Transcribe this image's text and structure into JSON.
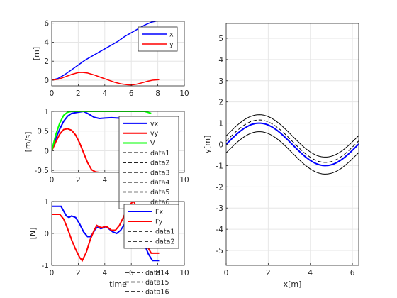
{
  "chart_data": [
    {
      "type": "line",
      "xlabel": "",
      "ylabel": "[m]",
      "xlim": [
        0,
        10
      ],
      "ylim": [
        -0.6,
        6.2
      ],
      "xticks": [
        "0",
        "2",
        "4",
        "6",
        "8",
        "10"
      ],
      "yticks": [
        "0",
        "2",
        "4",
        "6"
      ],
      "grid": true,
      "legend": "top-right",
      "series": [
        {
          "name": "x",
          "color": "#0000ff",
          "x": [
            0,
            0.5,
            1,
            1.5,
            2,
            2.5,
            3,
            3.5,
            4,
            4.5,
            5,
            5.5,
            6,
            6.5,
            7,
            7.5,
            8,
            8.1
          ],
          "y": [
            0,
            0.2,
            0.6,
            1.1,
            1.6,
            2.1,
            2.5,
            2.9,
            3.3,
            3.7,
            4.1,
            4.6,
            5.0,
            5.4,
            5.8,
            6.1,
            6.25,
            6.28
          ]
        },
        {
          "name": "y",
          "color": "#ff0000",
          "x": [
            0,
            0.5,
            1,
            1.5,
            2,
            2.3,
            2.7,
            3.2,
            3.7,
            4.2,
            4.7,
            5.2,
            5.7,
            6.0,
            6.4,
            6.8,
            7.2,
            7.6,
            8.1
          ],
          "y": [
            0,
            0.1,
            0.35,
            0.6,
            0.8,
            0.82,
            0.75,
            0.55,
            0.3,
            0.05,
            -0.2,
            -0.38,
            -0.48,
            -0.5,
            -0.42,
            -0.28,
            -0.12,
            0,
            0.05
          ]
        }
      ]
    },
    {
      "type": "line",
      "xlabel": "",
      "ylabel": "[m/s]",
      "xlim": [
        0,
        10
      ],
      "ylim": [
        -0.55,
        1.0
      ],
      "xticks": [
        "0",
        "2",
        "4",
        "6",
        "8",
        "10"
      ],
      "yticks": [
        "-0.5",
        "0",
        "0.5",
        "1"
      ],
      "grid": true,
      "legend": "top-right",
      "series": [
        {
          "name": "vx",
          "color": "#0000ff",
          "width": 2,
          "x": [
            0,
            0.3,
            0.6,
            0.9,
            1.2,
            1.5,
            2.0,
            2.4,
            2.8,
            3.2,
            3.6,
            4.0,
            4.5,
            5.0,
            5.5,
            6.0
          ],
          "y": [
            0,
            0.3,
            0.55,
            0.75,
            0.88,
            0.95,
            0.98,
            1.0,
            0.93,
            0.85,
            0.82,
            0.83,
            0.84,
            0.83,
            0.82,
            0.8
          ]
        },
        {
          "name": "vy",
          "color": "#ff0000",
          "width": 2,
          "x": [
            0,
            0.3,
            0.6,
            0.9,
            1.2,
            1.5,
            1.8,
            2.1,
            2.4,
            2.7,
            3.0,
            3.3,
            3.6,
            4.0,
            4.5,
            5.0
          ],
          "y": [
            0,
            0.22,
            0.42,
            0.54,
            0.56,
            0.52,
            0.4,
            0.2,
            -0.05,
            -0.3,
            -0.48,
            -0.54,
            -0.55,
            -0.55,
            -0.55,
            -0.55
          ]
        },
        {
          "name": "V",
          "color": "#00ff00",
          "width": 2,
          "x": [
            0,
            0.3,
            0.6,
            0.9,
            1.2,
            1.5,
            7.0,
            7.2,
            7.5
          ],
          "y": [
            0,
            0.4,
            0.7,
            0.9,
            0.98,
            1.0,
            1.0,
            0.98,
            0.95
          ]
        },
        {
          "name": "data1",
          "color": "#000000",
          "dash": true,
          "x": [],
          "y": []
        },
        {
          "name": "data2",
          "color": "#000000",
          "dash": true,
          "x": [],
          "y": []
        },
        {
          "name": "data3",
          "color": "#000000",
          "dash": true,
          "x": [],
          "y": []
        },
        {
          "name": "data4",
          "color": "#000000",
          "dash": true,
          "x": [],
          "y": []
        },
        {
          "name": "data5",
          "color": "#000000",
          "dash": true,
          "x": [],
          "y": []
        },
        {
          "name": "data6",
          "color": "#000000",
          "dash": true,
          "x": [],
          "y": []
        }
      ]
    },
    {
      "type": "line",
      "xlabel": "time",
      "ylabel": "[N]",
      "xlim": [
        0,
        10
      ],
      "ylim": [
        -1.0,
        1.0
      ],
      "xticks": [
        "0",
        "2",
        "4",
        "6",
        "8",
        "10"
      ],
      "yticks": [
        "-1",
        "0",
        "1"
      ],
      "grid": true,
      "legend": "top-right",
      "legend_hidden_entries": [
        "data14",
        "data15",
        "data16"
      ],
      "series": [
        {
          "name": "Fx",
          "color": "#0000ff",
          "width": 2,
          "x": [
            0,
            0.7,
            0.9,
            1.1,
            1.3,
            1.5,
            1.8,
            2.1,
            2.4,
            2.7,
            2.9,
            3.1,
            3.3,
            3.5,
            3.7,
            3.9,
            4.1,
            4.3,
            4.6,
            4.9,
            5.2,
            5.5,
            5.8,
            6.0,
            6.2,
            6.4,
            6.6,
            6.8,
            7.0,
            7.3,
            7.6,
            8.1
          ],
          "y": [
            0.85,
            0.85,
            0.7,
            0.55,
            0.5,
            0.55,
            0.5,
            0.3,
            0.05,
            -0.1,
            -0.1,
            0.0,
            0.15,
            0.2,
            0.15,
            0.18,
            0.22,
            0.15,
            0.05,
            0.0,
            0.1,
            0.3,
            0.55,
            0.85,
            0.9,
            0.8,
            0.5,
            0.1,
            -0.35,
            -0.65,
            -0.85,
            -0.85
          ]
        },
        {
          "name": "Fy",
          "color": "#ff0000",
          "width": 2,
          "x": [
            0,
            0.6,
            0.9,
            1.2,
            1.5,
            1.8,
            2.1,
            2.3,
            2.6,
            2.9,
            3.2,
            3.4,
            3.6,
            3.8,
            4.0,
            4.2,
            4.5,
            4.8,
            5.1,
            5.4,
            5.7,
            6.0,
            6.2,
            6.4,
            6.6,
            6.9,
            7.2,
            7.5,
            8.1
          ],
          "y": [
            0.6,
            0.6,
            0.45,
            0.15,
            -0.2,
            -0.5,
            -0.75,
            -0.85,
            -0.6,
            -0.2,
            0.1,
            0.25,
            0.2,
            0.18,
            0.22,
            0.2,
            0.1,
            0.1,
            0.25,
            0.5,
            0.8,
            0.95,
            1.0,
            0.8,
            0.4,
            -0.1,
            -0.4,
            -0.62,
            -0.62
          ]
        },
        {
          "name": "data1",
          "color": "#000000",
          "dash": true,
          "x": [
            0,
            10
          ],
          "y": [
            1,
            1
          ]
        },
        {
          "name": "data2",
          "color": "#000000",
          "dash": true,
          "x": [
            0,
            10
          ],
          "y": [
            -1,
            -1
          ]
        }
      ]
    },
    {
      "type": "line",
      "xlabel": "x[m]",
      "ylabel": "y[m]",
      "xlim": [
        0,
        6.3
      ],
      "ylim": [
        -5.7,
        5.7
      ],
      "xticks": [
        "0",
        "2",
        "4",
        "6"
      ],
      "yticks": [
        "-5",
        "-4",
        "-3",
        "-2",
        "-1",
        "0",
        "1",
        "2",
        "3",
        "4",
        "5"
      ],
      "grid": true,
      "series": [
        {
          "name": "",
          "color": "#000000",
          "width": 1,
          "func": "sin",
          "offset": 0.4
        },
        {
          "name": "",
          "color": "#000000",
          "width": 1,
          "func": "sin",
          "offset": -0.4
        },
        {
          "name": "",
          "color": "#000000",
          "width": 1,
          "dash": true,
          "func": "sin",
          "offset": 0.15
        },
        {
          "name": "",
          "color": "#0000ff",
          "width": 2,
          "func": "sin",
          "offset": 0
        }
      ]
    }
  ]
}
